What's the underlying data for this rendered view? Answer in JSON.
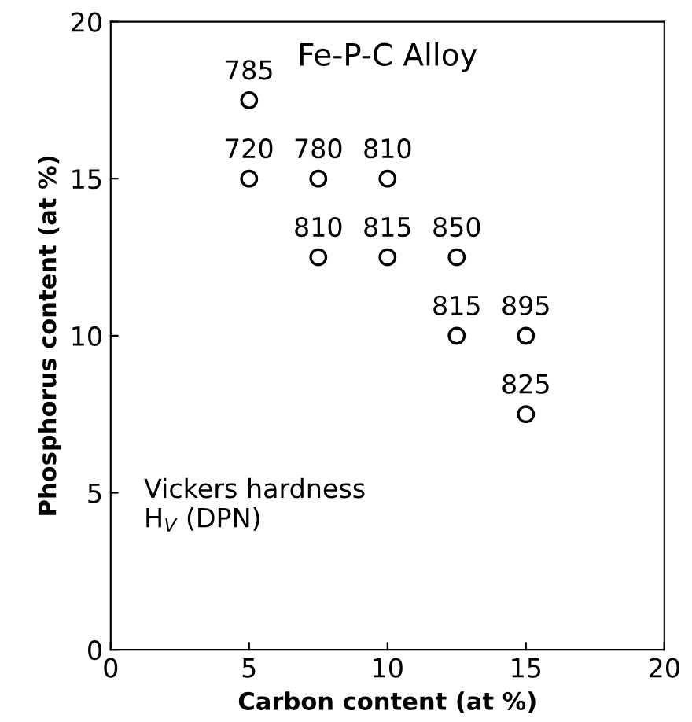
{
  "chart_data": {
    "type": "scatter",
    "title": "Fe-P-C Alloy",
    "xlabel": "Carbon content (at %)",
    "ylabel": "Phosphorus content (at %)",
    "x": [
      5,
      5,
      7.5,
      10,
      7.5,
      10,
      12.5,
      12.5,
      15,
      15
    ],
    "series": [
      {
        "color": "#000000",
        "values": [
          17.5,
          15,
          15,
          15,
          12.5,
          12.5,
          12.5,
          10,
          10,
          7.5
        ]
      }
    ],
    "marker": "circle",
    "xlim": [
      0,
      20
    ],
    "ylim": [
      0,
      20
    ],
    "xticks": [
      0,
      5,
      10,
      15,
      20
    ],
    "yticks": [
      0,
      5,
      10,
      15,
      20
    ],
    "grid": false,
    "legend": false,
    "annotations": [
      {
        "text": "785",
        "x": 5,
        "y": 17.5
      },
      {
        "text": "720",
        "x": 5,
        "y": 15
      },
      {
        "text": "780",
        "x": 7.5,
        "y": 15
      },
      {
        "text": "810",
        "x": 10,
        "y": 15
      },
      {
        "text": "810",
        "x": 7.5,
        "y": 12.5
      },
      {
        "text": "815",
        "x": 10,
        "y": 12.5
      },
      {
        "text": "850",
        "x": 12.5,
        "y": 12.5
      },
      {
        "text": "815",
        "x": 12.5,
        "y": 10
      },
      {
        "text": "895",
        "x": 15,
        "y": 10
      },
      {
        "text": "825",
        "x": 15,
        "y": 7.5
      },
      "Vickers hardness\nH$_{V}$ (DPN)"
    ]
  }
}
